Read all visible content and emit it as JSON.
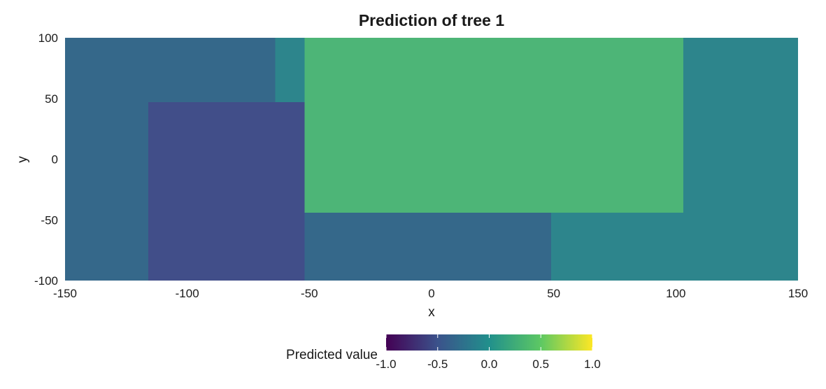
{
  "chart_data": {
    "type": "heatmap",
    "title": "Prediction of tree 1",
    "xlabel": "x",
    "ylabel": "y",
    "xlim": [
      -150,
      150
    ],
    "ylim": [
      -100,
      100
    ],
    "x_ticks": [
      -150,
      -100,
      -50,
      0,
      50,
      100,
      150
    ],
    "y_ticks": [
      -100,
      -50,
      0,
      50,
      100
    ],
    "grid": false,
    "regions": [
      {
        "x": [
          -150,
          -64
        ],
        "y": [
          47,
          100
        ],
        "value": -0.35
      },
      {
        "x": [
          -64,
          -52
        ],
        "y": [
          47,
          100
        ],
        "value": -0.15
      },
      {
        "x": [
          -150,
          -116
        ],
        "y": [
          -100,
          47
        ],
        "value": -0.35
      },
      {
        "x": [
          -116,
          -52
        ],
        "y": [
          -100,
          47
        ],
        "value": -0.6
      },
      {
        "x": [
          -52,
          103
        ],
        "y": [
          -44,
          100
        ],
        "value": 0.4
      },
      {
        "x": [
          103,
          150
        ],
        "y": [
          -44,
          100
        ],
        "value": -0.15
      },
      {
        "x": [
          -52,
          49
        ],
        "y": [
          -100,
          -44
        ],
        "value": -0.35
      },
      {
        "x": [
          49,
          150
        ],
        "y": [
          -100,
          -44
        ],
        "value": -0.15
      }
    ],
    "legend": {
      "title": "Predicted value",
      "position": "bottom",
      "range": [
        -1.0,
        1.0
      ],
      "ticks": [
        "-1.0",
        "-0.5",
        "0.0",
        "0.5",
        "1.0"
      ],
      "colormap": [
        "#440154",
        "#3b528b",
        "#21908c",
        "#5dc863",
        "#fde725"
      ]
    },
    "colors": {
      "-0.6": "#414e89",
      "-0.35": "#35688a",
      "-0.15": "#2d858c",
      "0.4": "#4db577"
    }
  }
}
